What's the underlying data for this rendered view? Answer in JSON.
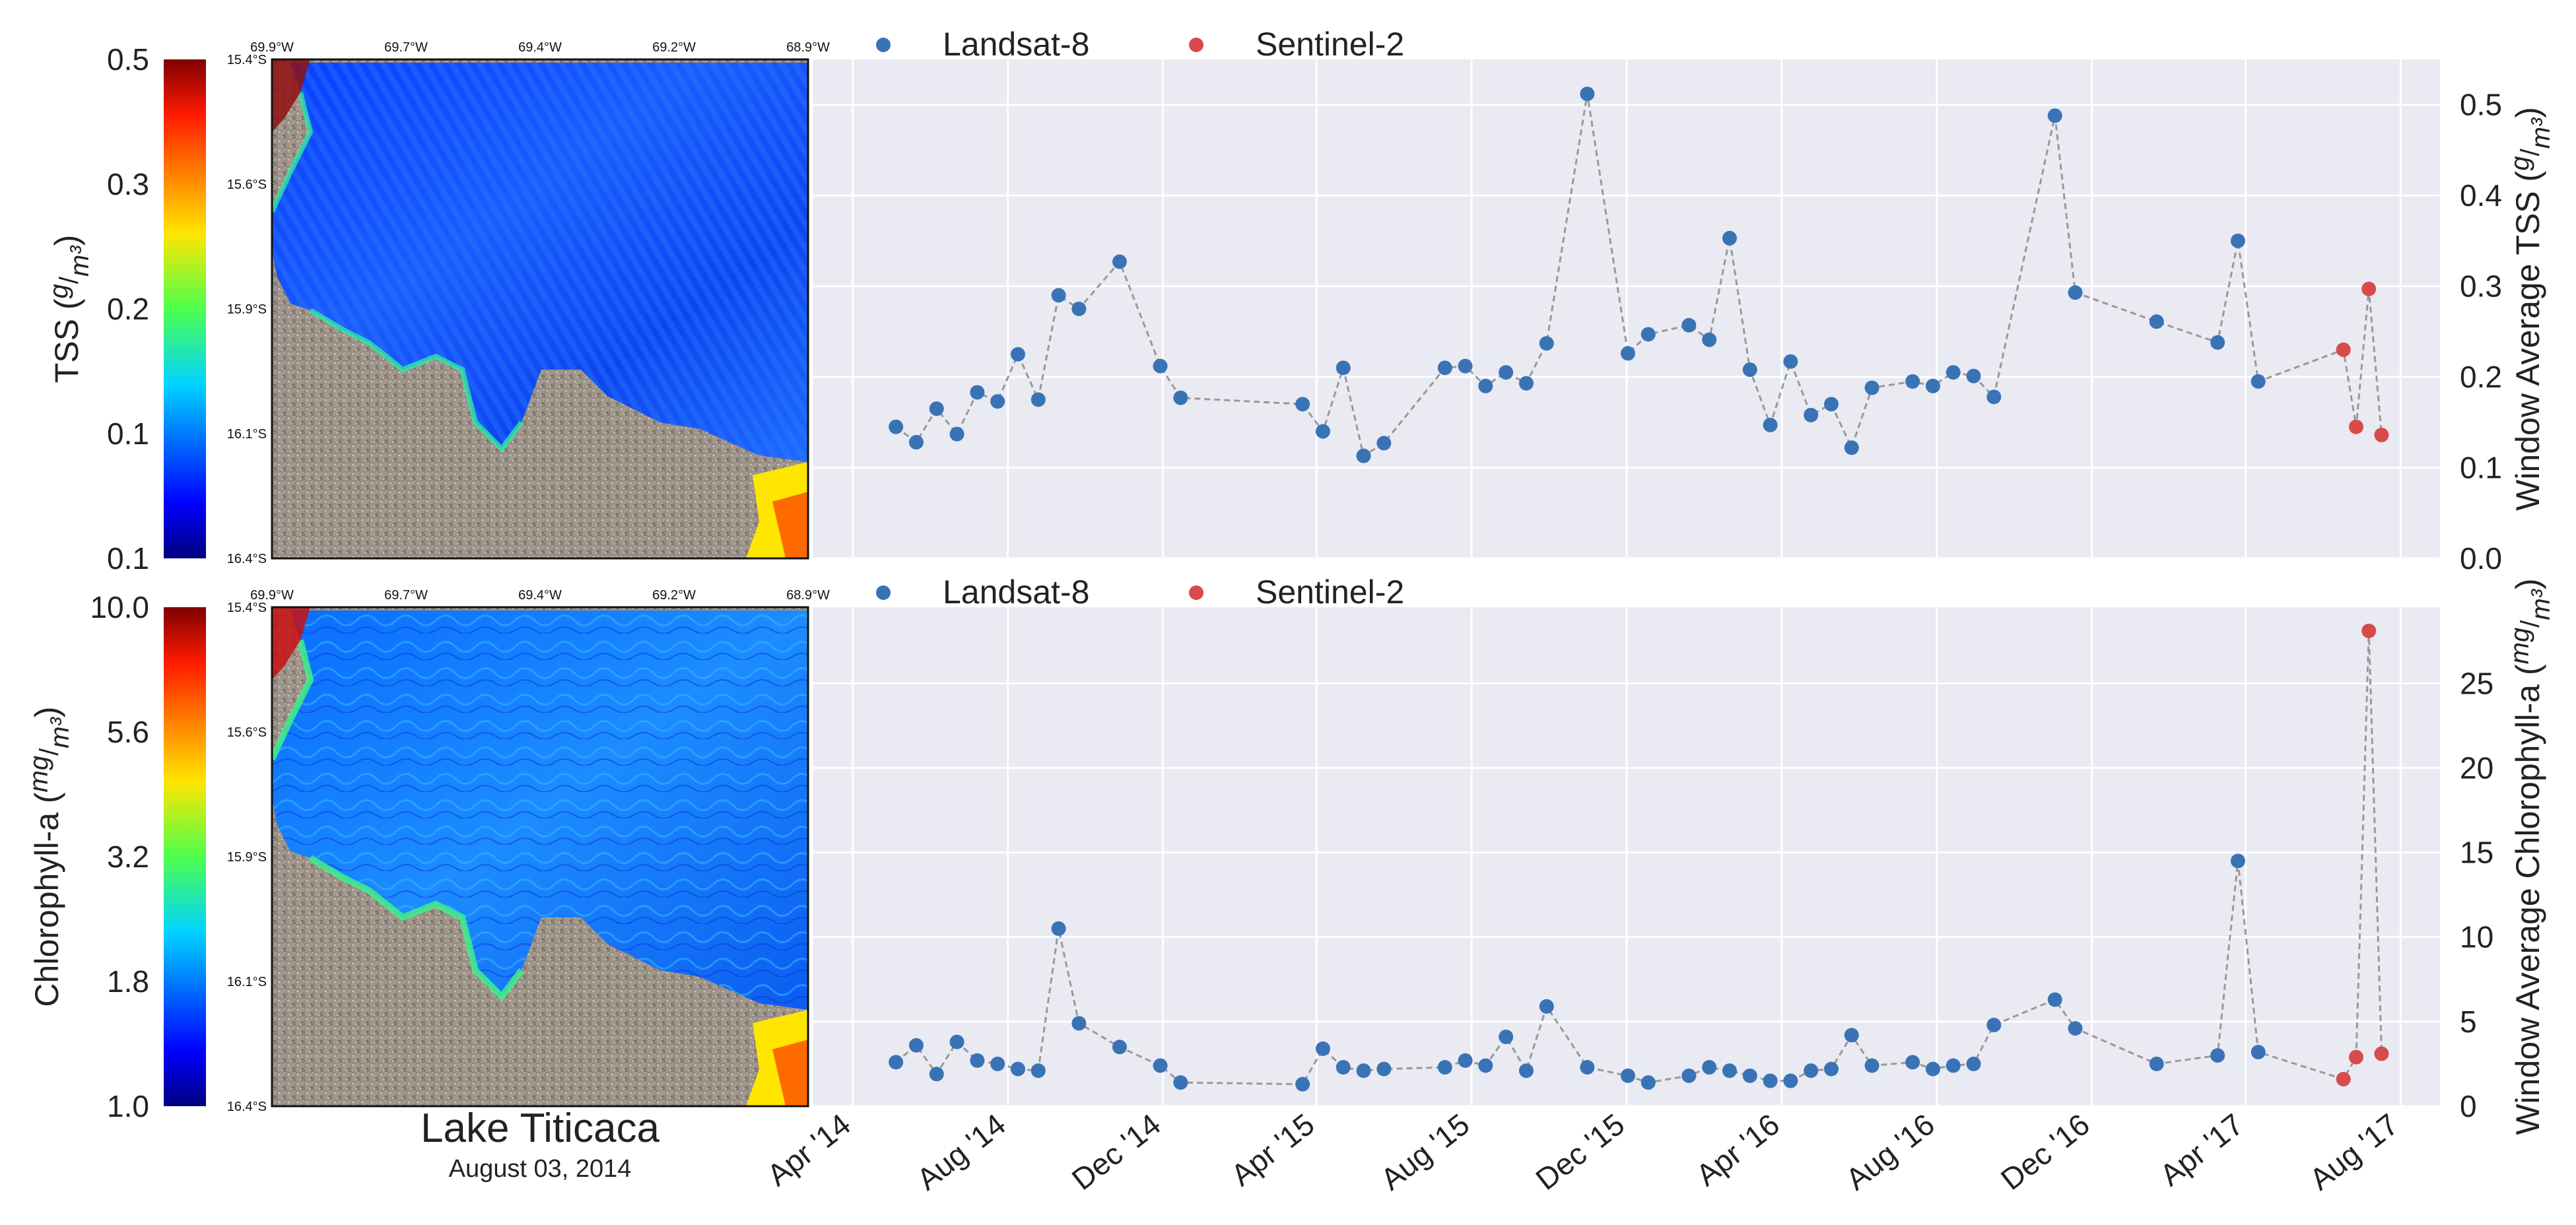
{
  "figure": {
    "site_name": "Lake Titicaca",
    "date_label": "August 03, 2014"
  },
  "colors": {
    "landsat": "#3a73b5",
    "sentinel": "#d94a4a",
    "panel_bg": "#e9eaf2",
    "grid": "#ffffff",
    "connector": "#999999"
  },
  "maps": {
    "lon_labels": [
      "69.9°W",
      "69.7°W",
      "69.4°W",
      "69.2°W",
      "68.9°W"
    ],
    "lat_labels": [
      "15.4°S",
      "15.6°S",
      "15.9°S",
      "16.1°S",
      "16.4°S"
    ],
    "tss_colorbar": {
      "label": "TSS (g/m³)",
      "ticks": [
        "0.5",
        "0.3",
        "0.2",
        "0.1",
        "0.1"
      ]
    },
    "chl_colorbar": {
      "label": "Chlorophyll-a (mg/m³)",
      "ticks": [
        "10.0",
        "5.6",
        "3.2",
        "1.8",
        "1.0"
      ]
    }
  },
  "chart_data": [
    {
      "type": "scatter",
      "id": "tss",
      "ylabel": "Window Average TSS (g/m³)",
      "ylim": [
        0,
        0.55
      ],
      "y_ticks": [
        0.0,
        0.1,
        0.2,
        0.3,
        0.4,
        0.5
      ],
      "y_tick_labels": [
        "0.0",
        "0.1",
        "0.2",
        "0.3",
        "0.4",
        "0.5"
      ],
      "legend": [
        "Landsat-8",
        "Sentinel-2"
      ],
      "legend_position": "top-left, outside above plot",
      "grid": true,
      "series": [
        {
          "name": "Landsat-8",
          "points": [
            [
              "2014-05-05",
              0.145
            ],
            [
              "2014-05-21",
              0.128
            ],
            [
              "2014-06-06",
              0.165
            ],
            [
              "2014-06-22",
              0.137
            ],
            [
              "2014-07-08",
              0.183
            ],
            [
              "2014-07-24",
              0.173
            ],
            [
              "2014-08-09",
              0.225
            ],
            [
              "2014-08-25",
              0.175
            ],
            [
              "2014-09-10",
              0.29
            ],
            [
              "2014-09-26",
              0.275
            ],
            [
              "2014-10-28",
              0.327
            ],
            [
              "2014-11-29",
              0.212
            ],
            [
              "2014-12-15",
              0.177
            ],
            [
              "2015-03-21",
              0.17
            ],
            [
              "2015-04-06",
              0.14
            ],
            [
              "2015-04-22",
              0.21
            ],
            [
              "2015-05-08",
              0.113
            ],
            [
              "2015-05-24",
              0.127
            ],
            [
              "2015-07-11",
              0.21
            ],
            [
              "2015-07-27",
              0.212
            ],
            [
              "2015-08-12",
              0.19
            ],
            [
              "2015-08-28",
              0.205
            ],
            [
              "2015-09-13",
              0.193
            ],
            [
              "2015-09-29",
              0.237
            ],
            [
              "2015-10-31",
              0.512
            ],
            [
              "2015-12-02",
              0.226
            ],
            [
              "2015-12-18",
              0.247
            ],
            [
              "2016-01-19",
              0.257
            ],
            [
              "2016-02-04",
              0.241
            ],
            [
              "2016-02-20",
              0.353
            ],
            [
              "2016-03-07",
              0.208
            ],
            [
              "2016-03-23",
              0.147
            ],
            [
              "2016-04-08",
              0.217
            ],
            [
              "2016-04-24",
              0.158
            ],
            [
              "2016-05-10",
              0.17
            ],
            [
              "2016-05-26",
              0.122
            ],
            [
              "2016-06-11",
              0.188
            ],
            [
              "2016-07-13",
              0.195
            ],
            [
              "2016-07-29",
              0.19
            ],
            [
              "2016-08-14",
              0.205
            ],
            [
              "2016-08-30",
              0.201
            ],
            [
              "2016-09-15",
              0.178
            ],
            [
              "2016-11-02",
              0.488
            ],
            [
              "2016-11-18",
              0.293
            ],
            [
              "2017-01-21",
              0.261
            ],
            [
              "2017-03-10",
              0.238
            ],
            [
              "2017-03-26",
              0.35
            ],
            [
              "2017-04-11",
              0.195
            ]
          ]
        },
        {
          "name": "Sentinel-2",
          "points": [
            [
              "2017-06-17",
              0.23
            ],
            [
              "2017-06-27",
              0.145
            ],
            [
              "2017-07-07",
              0.297
            ],
            [
              "2017-07-17",
              0.136
            ]
          ]
        }
      ]
    },
    {
      "type": "scatter",
      "id": "chl",
      "ylabel": "Window Average Chlorophyll-a (mg/m³)",
      "ylim": [
        0,
        29.5
      ],
      "y_ticks": [
        0,
        5,
        10,
        15,
        20,
        25
      ],
      "y_tick_labels": [
        "0",
        "5",
        "10",
        "15",
        "20",
        "25"
      ],
      "legend": [
        "Landsat-8",
        "Sentinel-2"
      ],
      "legend_position": "top-left, outside above plot",
      "grid": true,
      "x_ticks": [
        "2014-04-01",
        "2014-08-01",
        "2014-12-01",
        "2015-04-01",
        "2015-08-01",
        "2015-12-01",
        "2016-04-01",
        "2016-08-01",
        "2016-12-01",
        "2017-04-01",
        "2017-08-01"
      ],
      "x_tick_labels": [
        "Apr '14",
        "Aug '14",
        "Dec '14",
        "Apr '15",
        "Aug '15",
        "Dec '15",
        "Apr '16",
        "Aug '16",
        "Dec '16",
        "Apr '17",
        "Aug '17"
      ],
      "series": [
        {
          "name": "Landsat-8",
          "points": [
            [
              "2014-05-05",
              2.6
            ],
            [
              "2014-05-21",
              3.6
            ],
            [
              "2014-06-06",
              1.9
            ],
            [
              "2014-06-22",
              3.8
            ],
            [
              "2014-07-08",
              2.7
            ],
            [
              "2014-07-24",
              2.5
            ],
            [
              "2014-08-09",
              2.2
            ],
            [
              "2014-08-25",
              2.1
            ],
            [
              "2014-09-10",
              10.5
            ],
            [
              "2014-09-26",
              4.9
            ],
            [
              "2014-10-28",
              3.5
            ],
            [
              "2014-11-29",
              2.4
            ],
            [
              "2014-12-15",
              1.4
            ],
            [
              "2015-03-21",
              1.3
            ],
            [
              "2015-04-06",
              3.4
            ],
            [
              "2015-04-22",
              2.3
            ],
            [
              "2015-05-08",
              2.1
            ],
            [
              "2015-05-24",
              2.2
            ],
            [
              "2015-07-11",
              2.3
            ],
            [
              "2015-07-27",
              2.7
            ],
            [
              "2015-08-12",
              2.4
            ],
            [
              "2015-08-28",
              4.1
            ],
            [
              "2015-09-13",
              2.1
            ],
            [
              "2015-09-29",
              5.9
            ],
            [
              "2015-10-31",
              2.3
            ],
            [
              "2015-12-02",
              1.8
            ],
            [
              "2015-12-18",
              1.4
            ],
            [
              "2016-01-19",
              1.8
            ],
            [
              "2016-02-04",
              2.3
            ],
            [
              "2016-02-20",
              2.1
            ],
            [
              "2016-03-07",
              1.8
            ],
            [
              "2016-03-23",
              1.5
            ],
            [
              "2016-04-08",
              1.5
            ],
            [
              "2016-04-24",
              2.1
            ],
            [
              "2016-05-10",
              2.2
            ],
            [
              "2016-05-26",
              4.2
            ],
            [
              "2016-06-11",
              2.4
            ],
            [
              "2016-07-13",
              2.6
            ],
            [
              "2016-07-29",
              2.2
            ],
            [
              "2016-08-14",
              2.4
            ],
            [
              "2016-08-30",
              2.5
            ],
            [
              "2016-09-15",
              4.8
            ],
            [
              "2016-11-02",
              6.3
            ],
            [
              "2016-11-18",
              4.6
            ],
            [
              "2017-01-21",
              2.5
            ],
            [
              "2017-03-10",
              3.0
            ],
            [
              "2017-03-26",
              14.5
            ],
            [
              "2017-04-11",
              3.2
            ]
          ]
        },
        {
          "name": "Sentinel-2",
          "points": [
            [
              "2017-06-17",
              1.6
            ],
            [
              "2017-06-27",
              2.9
            ],
            [
              "2017-07-07",
              28.1
            ],
            [
              "2017-07-17",
              3.1
            ]
          ]
        }
      ]
    }
  ]
}
